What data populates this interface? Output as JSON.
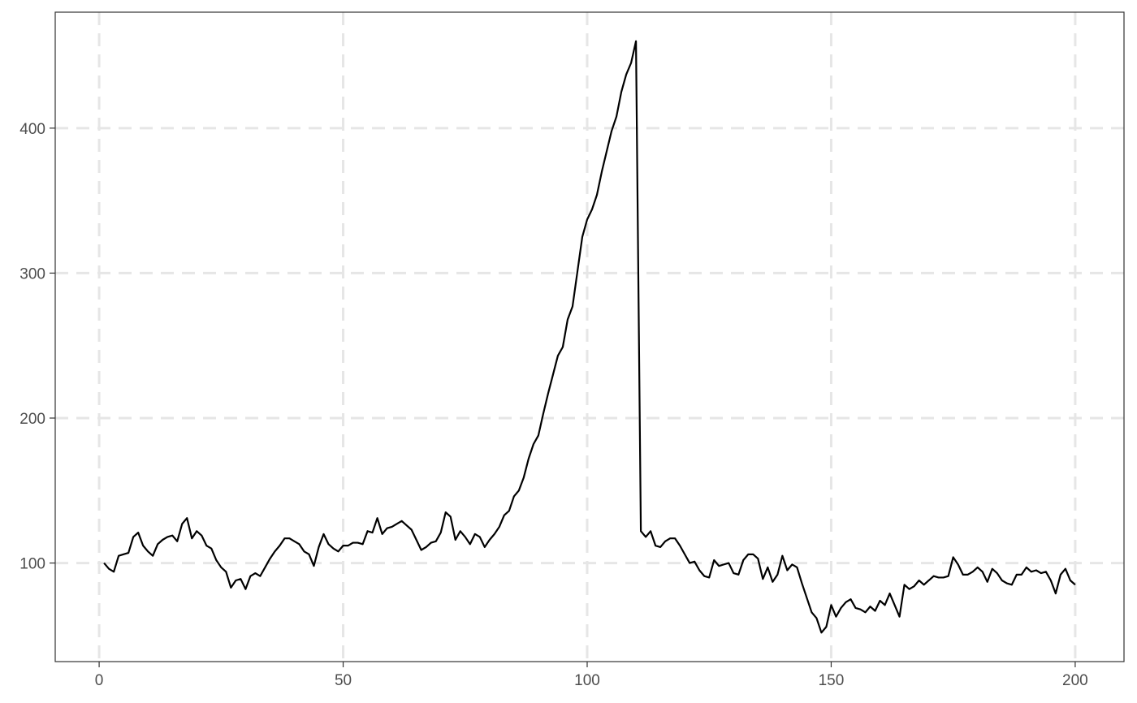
{
  "chart_data": {
    "type": "line",
    "title": "",
    "xlabel": "",
    "ylabel": "",
    "xlim": [
      -9,
      210
    ],
    "ylim": [
      32,
      480
    ],
    "x_ticks": [
      0,
      50,
      100,
      150,
      200
    ],
    "x_tick_labels": [
      "0",
      "50",
      "100",
      "150",
      "200"
    ],
    "y_ticks": [
      100,
      200,
      300,
      400
    ],
    "y_tick_labels": [
      "100",
      "200",
      "300",
      "400"
    ],
    "grid": true,
    "legend": "none",
    "colors": {
      "line": "#000000",
      "grid": "#e6e6e6",
      "border": "#333333"
    },
    "x": [
      1,
      2,
      3,
      4,
      5,
      6,
      7,
      8,
      9,
      10,
      11,
      12,
      13,
      14,
      15,
      16,
      17,
      18,
      19,
      20,
      21,
      22,
      23,
      24,
      25,
      26,
      27,
      28,
      29,
      30,
      31,
      32,
      33,
      34,
      35,
      36,
      37,
      38,
      39,
      40,
      41,
      42,
      43,
      44,
      45,
      46,
      47,
      48,
      49,
      50,
      51,
      52,
      53,
      54,
      55,
      56,
      57,
      58,
      59,
      60,
      61,
      62,
      63,
      64,
      65,
      66,
      67,
      68,
      69,
      70,
      71,
      72,
      73,
      74,
      75,
      76,
      77,
      78,
      79,
      80,
      81,
      82,
      83,
      84,
      85,
      86,
      87,
      88,
      89,
      90,
      91,
      92,
      93,
      94,
      95,
      96,
      97,
      98,
      99,
      100,
      101,
      102,
      103,
      104,
      105,
      106,
      107,
      108,
      109,
      110,
      111,
      112,
      113,
      114,
      115,
      116,
      117,
      118,
      119,
      120,
      121,
      122,
      123,
      124,
      125,
      126,
      127,
      128,
      129,
      130,
      131,
      132,
      133,
      134,
      135,
      136,
      137,
      138,
      139,
      140,
      141,
      142,
      143,
      144,
      145,
      146,
      147,
      148,
      149,
      150,
      151,
      152,
      153,
      154,
      155,
      156,
      157,
      158,
      159,
      160,
      161,
      162,
      163,
      164,
      165,
      166,
      167,
      168,
      169,
      170,
      171,
      172,
      173,
      174,
      175,
      176,
      177,
      178,
      179,
      180,
      181,
      182,
      183,
      184,
      185,
      186,
      187,
      188,
      189,
      190,
      191,
      192,
      193,
      194,
      195,
      196,
      197,
      198,
      199,
      200
    ],
    "series": [
      {
        "values": [
          100,
          96,
          94,
          105,
          106,
          107,
          118,
          121,
          112,
          108,
          105,
          113,
          116,
          118,
          119,
          115,
          127,
          131,
          117,
          122,
          119,
          112,
          110,
          102,
          97,
          94,
          83,
          88,
          89,
          82,
          91,
          93,
          91,
          97,
          103,
          108,
          112,
          117,
          117,
          115,
          113,
          108,
          106,
          98,
          111,
          120,
          113,
          110,
          108,
          112,
          112,
          114,
          114,
          113,
          122,
          121,
          131,
          120,
          124,
          125,
          127,
          129,
          126,
          123,
          116,
          109,
          111,
          114,
          115,
          121,
          135,
          132,
          116,
          122,
          118,
          113,
          120,
          118,
          111,
          116,
          120,
          125,
          133,
          136,
          146,
          150,
          159,
          172,
          182,
          188,
          203,
          217,
          230,
          243,
          249,
          268,
          277,
          301,
          325,
          337,
          344,
          354,
          370,
          384,
          398,
          408,
          425,
          437,
          445,
          460,
          122,
          118,
          122,
          112,
          111,
          115,
          117,
          117,
          112,
          106,
          100,
          101,
          95,
          91,
          90,
          102,
          98,
          99,
          100,
          93,
          92,
          102,
          106,
          106,
          103,
          89,
          97,
          87,
          92,
          105,
          95,
          99,
          97,
          86,
          76,
          66,
          62,
          52,
          56,
          71,
          63,
          69,
          73,
          75,
          69,
          68,
          66,
          70,
          67,
          74,
          71,
          79,
          71,
          63,
          85,
          82,
          84,
          88,
          85,
          88,
          91,
          90,
          90,
          91,
          104,
          99,
          92,
          92,
          94,
          97,
          94,
          87,
          96,
          93,
          88,
          86,
          85,
          92,
          92,
          97,
          94,
          95,
          93,
          94,
          88,
          79,
          92,
          96,
          88,
          85
        ]
      }
    ]
  }
}
